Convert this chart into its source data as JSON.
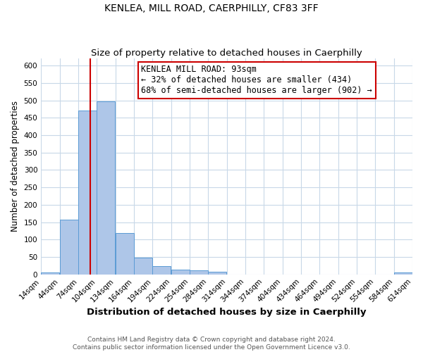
{
  "title": "KENLEA, MILL ROAD, CAERPHILLY, CF83 3FF",
  "subtitle": "Size of property relative to detached houses in Caerphilly",
  "xlabel": "Distribution of detached houses by size in Caerphilly",
  "ylabel": "Number of detached properties",
  "footer_line1": "Contains HM Land Registry data © Crown copyright and database right 2024.",
  "footer_line2": "Contains public sector information licensed under the Open Government Licence v3.0.",
  "bin_edges": [
    14,
    44,
    74,
    104,
    134,
    164,
    194,
    224,
    254,
    284,
    314,
    344,
    374,
    404,
    434,
    464,
    494,
    524,
    554,
    584,
    614
  ],
  "bar_heights": [
    5,
    158,
    470,
    497,
    119,
    48,
    24,
    13,
    11,
    8,
    0,
    0,
    0,
    0,
    0,
    0,
    0,
    0,
    0,
    5
  ],
  "bar_color": "#aec6e8",
  "bar_edge_color": "#5b9bd5",
  "vline_color": "#cc0000",
  "vline_x": 93,
  "annotation_title": "KENLEA MILL ROAD: 93sqm",
  "annotation_line1": "← 32% of detached houses are smaller (434)",
  "annotation_line2": "68% of semi-detached houses are larger (902) →",
  "annotation_box_edge": "#cc0000",
  "ylim": [
    0,
    620
  ],
  "yticks": [
    0,
    50,
    100,
    150,
    200,
    250,
    300,
    350,
    400,
    450,
    500,
    550,
    600
  ],
  "background_color": "#ffffff",
  "grid_color": "#c8d8e8",
  "title_fontsize": 10,
  "subtitle_fontsize": 9.5,
  "xlabel_fontsize": 9.5,
  "ylabel_fontsize": 8.5,
  "tick_label_fontsize": 7.5,
  "annotation_fontsize": 8.5,
  "footer_fontsize": 6.5
}
